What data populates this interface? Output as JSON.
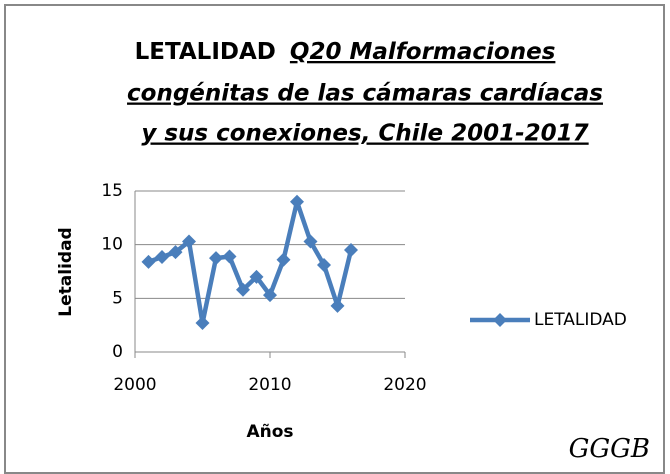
{
  "chart_data": {
    "type": "line",
    "title": "LETALIDAD",
    "title_emphasis": [
      "Q20 Malformaciones",
      "congénitas de las cámaras cardíacas",
      "y sus conexiones, Chile 2001-2017"
    ],
    "x_label": "Años",
    "y_label": "Letalidad",
    "watermark": "GGGB",
    "x": [
      2001,
      2002,
      2003,
      2004,
      2005,
      2006,
      2007,
      2008,
      2009,
      2010,
      2011,
      2012,
      2013,
      2014,
      2015,
      2016
    ],
    "series": [
      {
        "name": "LETALIDAD",
        "color": "#4a7ebb",
        "values": [
          8.4,
          8.85,
          9.3,
          10.3,
          2.7,
          8.75,
          8.9,
          5.8,
          7.0,
          5.3,
          8.6,
          14.0,
          10.3,
          8.1,
          4.3,
          9.5
        ]
      }
    ],
    "xlim": [
      2000,
      2020
    ],
    "xticks": [
      2000,
      2010,
      2020
    ],
    "ylim": [
      0,
      15
    ],
    "yticks": [
      0,
      5,
      10,
      15
    ],
    "grid": true,
    "legend": "right"
  }
}
